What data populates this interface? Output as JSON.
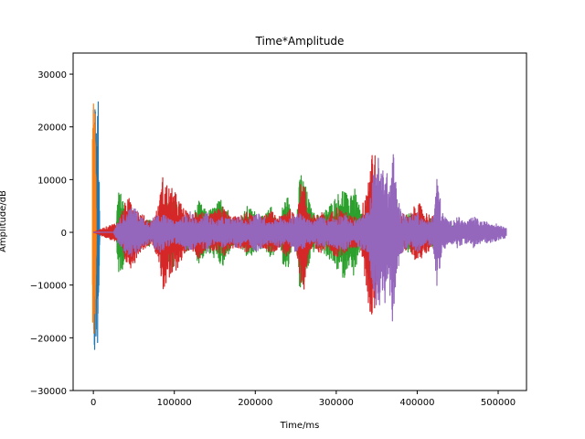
{
  "chart_data": {
    "type": "line",
    "title": "Time*Amplitude",
    "xlabel": "Time/ms",
    "ylabel": "Amplitude/dB",
    "xlim": [
      -25000,
      535000
    ],
    "ylim": [
      -30000,
      34000
    ],
    "xticks": [
      0,
      100000,
      200000,
      300000,
      400000,
      500000
    ],
    "xtick_labels": [
      "0",
      "100000",
      "200000",
      "300000",
      "400000",
      "500000"
    ],
    "yticks": [
      -30000,
      -20000,
      -10000,
      0,
      10000,
      20000,
      30000
    ],
    "ytick_labels": [
      "−30000",
      "−20000",
      "−10000",
      "0",
      "10000",
      "20000",
      "30000"
    ],
    "grid": false,
    "legend": false,
    "series_colors": [
      "#1f77b4",
      "#ff7f0e",
      "#2ca02c",
      "#d62728",
      "#9467bd"
    ],
    "series": [
      {
        "color": "#1f77b4",
        "envelope": {
          "x": [
            0,
            1000,
            2000,
            3000,
            4000,
            5000,
            6000,
            7000,
            8000
          ],
          "upper": [
            15000,
            22000,
            28000,
            24000,
            18000,
            22000,
            28000,
            12000,
            0
          ],
          "lower": [
            -16000,
            -22000,
            -27000,
            -24000,
            -18000,
            -22000,
            -26000,
            -12000,
            0
          ]
        }
      },
      {
        "color": "#ff7f0e",
        "envelope": {
          "x": [
            -1000,
            0,
            500,
            1000,
            1500,
            2000,
            2500,
            3000,
            3500
          ],
          "upper": [
            20000,
            30000,
            31000,
            28000,
            24000,
            26000,
            21000,
            15000,
            0
          ],
          "lower": [
            -18000,
            -22000,
            -20000,
            -19000,
            -20000,
            -18000,
            -15000,
            -10000,
            0
          ]
        }
      },
      {
        "color": "#2ca02c",
        "envelope": {
          "x": [
            0,
            28000,
            30000,
            36000,
            42000,
            50000,
            58000,
            70000,
            78000,
            85000,
            92000,
            100000,
            108000,
            115000,
            120000,
            130000,
            140000,
            150000,
            160000,
            170000,
            180000,
            190000,
            200000,
            210000,
            220000,
            230000,
            235000,
            240000,
            245000,
            250000,
            256000,
            262000,
            270000,
            280000,
            290000,
            300000,
            305000,
            310000,
            315000,
            320000,
            330000,
            340000,
            350000,
            360000,
            370000,
            380000,
            390000,
            400000,
            410000,
            420000,
            430000,
            440000,
            450000,
            460000
          ],
          "upper": [
            0,
            0,
            8000,
            7000,
            4000,
            2000,
            1000,
            3000,
            1500,
            2000,
            6000,
            7000,
            3000,
            4000,
            2000,
            6000,
            4000,
            5000,
            7000,
            3000,
            2000,
            5000,
            4000,
            3000,
            5000,
            2000,
            6000,
            7000,
            3000,
            2000,
            12000,
            9000,
            4000,
            3000,
            5000,
            7000,
            8000,
            9000,
            6000,
            10000,
            4000,
            3000,
            2000,
            5000,
            3000,
            2000,
            4000,
            3000,
            2000,
            3000,
            2000,
            1500,
            1000,
            0
          ],
          "lower": [
            0,
            0,
            -8000,
            -7000,
            -4000,
            -2000,
            -1000,
            -3000,
            -1500,
            -2000,
            -6000,
            -7000,
            -3000,
            -4000,
            -2000,
            -6000,
            -4000,
            -5000,
            -7000,
            -3000,
            -2000,
            -5000,
            -4000,
            -3000,
            -5000,
            -2000,
            -7000,
            -8000,
            -3000,
            -2000,
            -13000,
            -9000,
            -4000,
            -3000,
            -5000,
            -7000,
            -8000,
            -9000,
            -6000,
            -9000,
            -4000,
            -3000,
            -2000,
            -5000,
            -3000,
            -2000,
            -4000,
            -3000,
            -2000,
            -3000,
            -2000,
            -1500,
            -1000,
            0
          ]
        }
      },
      {
        "color": "#d62728",
        "envelope": {
          "x": [
            0,
            30000,
            40000,
            48000,
            56000,
            64000,
            72000,
            80000,
            86000,
            92000,
            100000,
            110000,
            120000,
            130000,
            140000,
            150000,
            160000,
            170000,
            180000,
            190000,
            200000,
            210000,
            220000,
            230000,
            240000,
            250000,
            255000,
            260000,
            265000,
            270000,
            280000,
            290000,
            300000,
            310000,
            320000,
            330000,
            340000,
            344000,
            348000,
            352000,
            360000,
            370000,
            380000,
            390000,
            400000,
            410000,
            420000,
            430000
          ],
          "upper": [
            0,
            2000,
            6000,
            7000,
            4000,
            3000,
            2000,
            5000,
            11000,
            9000,
            8000,
            5000,
            3000,
            5000,
            3000,
            4000,
            5000,
            3000,
            3000,
            4000,
            3000,
            3000,
            4000,
            3000,
            5000,
            3000,
            9000,
            10000,
            5000,
            3000,
            4000,
            3000,
            5000,
            4000,
            3000,
            3000,
            12000,
            17000,
            15000,
            6000,
            4000,
            3000,
            4000,
            3000,
            6000,
            4000,
            3000,
            0
          ],
          "lower": [
            0,
            -2000,
            -6000,
            -7000,
            -4000,
            -3000,
            -2000,
            -5000,
            -11000,
            -10000,
            -8000,
            -5000,
            -3000,
            -5000,
            -3000,
            -4000,
            -5000,
            -3000,
            -3000,
            -4000,
            -3000,
            -3000,
            -4000,
            -3000,
            -5000,
            -3000,
            -9000,
            -11000,
            -5000,
            -3000,
            -4000,
            -3000,
            -5000,
            -4000,
            -3000,
            -3000,
            -14000,
            -17000,
            -16000,
            -6000,
            -4000,
            -3000,
            -4000,
            -3000,
            -6000,
            -4000,
            -3000,
            0
          ]
        }
      },
      {
        "color": "#9467bd",
        "envelope": {
          "x": [
            0,
            8000,
            25000,
            30000,
            40000,
            50000,
            60000,
            70000,
            80000,
            90000,
            100000,
            110000,
            120000,
            130000,
            140000,
            150000,
            160000,
            170000,
            180000,
            190000,
            200000,
            210000,
            220000,
            230000,
            240000,
            250000,
            260000,
            270000,
            280000,
            290000,
            300000,
            310000,
            320000,
            330000,
            340000,
            345000,
            350000,
            355000,
            360000,
            365000,
            370000,
            375000,
            380000,
            390000,
            400000,
            410000,
            420000,
            425000,
            430000,
            440000,
            450000,
            460000,
            470000,
            480000,
            490000,
            500000,
            510000
          ],
          "upper": [
            0,
            0,
            0,
            2000,
            4000,
            5000,
            3000,
            2000,
            4000,
            3000,
            2000,
            3000,
            4000,
            2000,
            4000,
            2000,
            3000,
            2500,
            3000,
            2000,
            4000,
            3000,
            2000,
            3000,
            2000,
            4000,
            3000,
            2000,
            3000,
            2500,
            3000,
            3500,
            2000,
            3000,
            4000,
            10000,
            16000,
            12000,
            14000,
            9000,
            16000,
            8000,
            4000,
            3000,
            4000,
            2000,
            3000,
            12000,
            4000,
            2000,
            3000,
            2000,
            3000,
            2000,
            2000,
            1500,
            1000
          ],
          "lower": [
            0,
            0,
            0,
            -2000,
            -4000,
            -5000,
            -3000,
            -2000,
            -4000,
            -3000,
            -2000,
            -3000,
            -4000,
            -2000,
            -4000,
            -2000,
            -3000,
            -2500,
            -3000,
            -2000,
            -4000,
            -3000,
            -2000,
            -3000,
            -2000,
            -4000,
            -3000,
            -2000,
            -3000,
            -2500,
            -3000,
            -3500,
            -2000,
            -3000,
            -4000,
            -11000,
            -17000,
            -13000,
            -14000,
            -9000,
            -20000,
            -8000,
            -4000,
            -3000,
            -4000,
            -2000,
            -3000,
            -12000,
            -4000,
            -2000,
            -3000,
            -2000,
            -3000,
            -2000,
            -2000,
            -1500,
            -1000
          ]
        }
      }
    ]
  }
}
